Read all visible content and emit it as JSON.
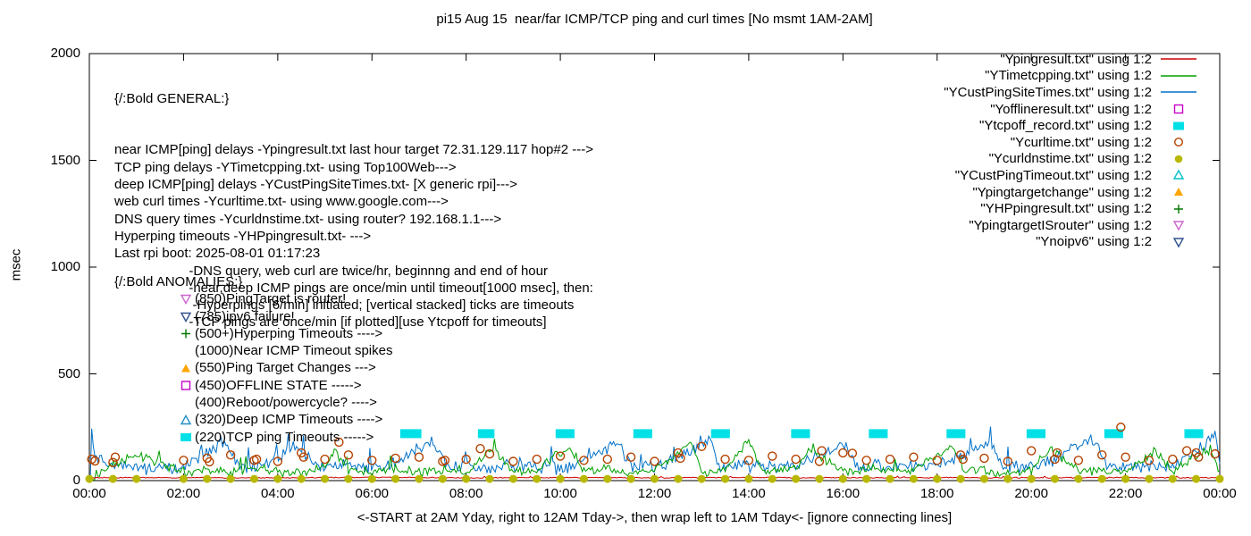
{
  "chart_data": {
    "type": "line",
    "title": "pi15 Aug 15  near/far ICMP/TCP ping and curl times [No msmt 1AM-2AM]",
    "xlabel": "<-START at 2AM Yday, right to 12AM Tday->, then wrap left to 1AM Tday<- [ignore connecting lines]",
    "ylabel": "msec",
    "xlim": [
      0,
      24
    ],
    "ylim": [
      0,
      2000
    ],
    "yticks": [
      0,
      500,
      1000,
      1500,
      2000
    ],
    "xticks": [
      {
        "h": 0,
        "label": "00:00"
      },
      {
        "h": 2,
        "label": "02:00"
      },
      {
        "h": 4,
        "label": "04:00"
      },
      {
        "h": 6,
        "label": "06:00"
      },
      {
        "h": 8,
        "label": "08:00"
      },
      {
        "h": 10,
        "label": "10:00"
      },
      {
        "h": 12,
        "label": "12:00"
      },
      {
        "h": 14,
        "label": "14:00"
      },
      {
        "h": 16,
        "label": "16:00"
      },
      {
        "h": 18,
        "label": "18:00"
      },
      {
        "h": 20,
        "label": "20:00"
      },
      {
        "h": 22,
        "label": "22:00"
      },
      {
        "h": 24,
        "label": "00:00"
      }
    ],
    "legend": [
      {
        "label": "\"Ypingresult.txt\" using 1:2",
        "color": "#d00000",
        "sample": "line",
        "marker": "line"
      },
      {
        "label": "\"YTimetcpping.txt\" using 1:2",
        "color": "#00a000",
        "sample": "line",
        "marker": "line"
      },
      {
        "label": "\"YCustPingSiteTimes.txt\" using 1:2",
        "color": "#0070c8",
        "sample": "line",
        "marker": "line"
      },
      {
        "label": "\"Yofflineresult.txt\" using 1:2",
        "color": "#c800c8",
        "sample": "point",
        "marker": "square-open"
      },
      {
        "label": "\"Ytcpoff_record.txt\" using 1:2",
        "color": "#00e0e6",
        "sample": "point",
        "marker": "square-filled"
      },
      {
        "label": "\"Ycurltime.txt\" using 1:2",
        "color": "#b44200",
        "sample": "point",
        "marker": "circle-open"
      },
      {
        "label": "\"Ycurldnstime.txt\" using 1:2",
        "color": "#b8b800",
        "sample": "point",
        "marker": "circle-filled"
      },
      {
        "label": "\"YCustPingTimeout.txt\" using 1:2",
        "color": "#00c0c8",
        "sample": "point",
        "marker": "triangle-up-open"
      },
      {
        "label": "\"Ypingtargetchange\" using 1:2",
        "color": "#ffa500",
        "sample": "point",
        "marker": "triangle-up-filled"
      },
      {
        "label": "\"YHPpingresult.txt\" using 1:2",
        "color": "#007800",
        "sample": "point",
        "marker": "plus"
      },
      {
        "label": "\"YpingtargetISrouter\" using 1:2",
        "color": "#cc66cc",
        "sample": "point",
        "marker": "triangle-down-open"
      },
      {
        "label": "\"Ynoipv6\" using 1:2",
        "color": "#30508c",
        "sample": "point",
        "marker": "triangle-down-open"
      }
    ],
    "series_lines": [
      {
        "name": "YCustPingSiteTimes",
        "color": "#0070c8",
        "jitter": 38,
        "points": [
          [
            0.02,
            40
          ],
          [
            0.05,
            230
          ],
          [
            0.15,
            90
          ],
          [
            0.5,
            70
          ],
          [
            1.0,
            60
          ],
          [
            2.0,
            65
          ],
          [
            2.9,
            180
          ],
          [
            3.2,
            60
          ],
          [
            3.8,
            75
          ],
          [
            4.4,
            170
          ],
          [
            4.8,
            65
          ],
          [
            5.5,
            70
          ],
          [
            6.2,
            60
          ],
          [
            7.3,
            190
          ],
          [
            7.6,
            70
          ],
          [
            8.2,
            65
          ],
          [
            9.0,
            75
          ],
          [
            9.6,
            60
          ],
          [
            10.4,
            70
          ],
          [
            11.2,
            180
          ],
          [
            11.5,
            65
          ],
          [
            12.2,
            70
          ],
          [
            13.15,
            200
          ],
          [
            13.4,
            65
          ],
          [
            14.2,
            70
          ],
          [
            15.0,
            60
          ],
          [
            16.0,
            170
          ],
          [
            16.3,
            65
          ],
          [
            17.2,
            70
          ],
          [
            18.0,
            60
          ],
          [
            19.1,
            180
          ],
          [
            19.4,
            65
          ],
          [
            20.2,
            70
          ],
          [
            21.3,
            190
          ],
          [
            21.6,
            65
          ],
          [
            22.4,
            70
          ],
          [
            23.0,
            60
          ],
          [
            23.9,
            210
          ],
          [
            24,
            80
          ]
        ]
      },
      {
        "name": "YTimetcpping",
        "color": "#00a000",
        "jitter": 28,
        "points": [
          [
            0,
            10
          ],
          [
            0.4,
            55
          ],
          [
            0.8,
            105
          ],
          [
            1.0,
            120
          ],
          [
            2.0,
            40
          ],
          [
            2.5,
            50
          ],
          [
            3,
            38
          ],
          [
            3.5,
            60
          ],
          [
            4,
            45
          ],
          [
            4.5,
            35
          ],
          [
            5,
            55
          ],
          [
            5.2,
            150
          ],
          [
            5.5,
            45
          ],
          [
            6,
            40
          ],
          [
            6.5,
            60
          ],
          [
            7,
            35
          ],
          [
            7.5,
            50
          ],
          [
            8,
            45
          ],
          [
            8.6,
            150
          ],
          [
            9,
            40
          ],
          [
            9.5,
            55
          ],
          [
            10.2,
            160
          ],
          [
            10.5,
            45
          ],
          [
            11,
            50
          ],
          [
            11.5,
            40
          ],
          [
            12,
            55
          ],
          [
            12.8,
            170
          ],
          [
            13,
            45
          ],
          [
            13.5,
            50
          ],
          [
            14.0,
            190
          ],
          [
            14.3,
            45
          ],
          [
            15,
            55
          ],
          [
            15.3,
            150
          ],
          [
            16,
            40
          ],
          [
            16.5,
            55
          ],
          [
            17,
            45
          ],
          [
            17.5,
            50
          ],
          [
            18.3,
            160
          ],
          [
            18.6,
            45
          ],
          [
            19,
            50
          ],
          [
            19.5,
            40
          ],
          [
            20,
            55
          ],
          [
            20.4,
            150
          ],
          [
            21,
            45
          ],
          [
            21.5,
            50
          ],
          [
            22,
            40
          ],
          [
            22.6,
            140
          ],
          [
            23,
            50
          ],
          [
            23.8,
            150
          ],
          [
            24,
            45
          ]
        ]
      },
      {
        "name": "Ypingresult",
        "color": "#d00000",
        "jitter": 3,
        "points": [
          [
            0,
            13
          ],
          [
            2,
            14
          ],
          [
            4,
            13
          ],
          [
            6,
            15
          ],
          [
            8,
            13
          ],
          [
            10,
            14
          ],
          [
            12,
            13
          ],
          [
            14,
            15
          ],
          [
            16,
            13
          ],
          [
            18,
            14
          ],
          [
            20,
            13
          ],
          [
            22,
            14
          ],
          [
            24,
            13
          ]
        ]
      }
    ],
    "markers": {
      "tcp_timeout_bars": {
        "name": "Ytcpoff_record",
        "color": "#00e0e6",
        "y": 220,
        "ranges": [
          [
            6.6,
            7.05
          ],
          [
            8.25,
            8.6
          ],
          [
            9.9,
            10.3
          ],
          [
            11.55,
            11.95
          ],
          [
            13.2,
            13.6
          ],
          [
            14.9,
            15.3
          ],
          [
            16.55,
            16.95
          ],
          [
            18.2,
            18.6
          ],
          [
            19.9,
            20.3
          ],
          [
            21.55,
            21.95
          ],
          [
            23.25,
            23.65
          ]
        ]
      },
      "curl_circles": {
        "name": "Ycurltime",
        "color": "#b44200",
        "points": [
          [
            0.05,
            100
          ],
          [
            0.12,
            92
          ],
          [
            0.5,
            85
          ],
          [
            0.55,
            110
          ],
          [
            2.0,
            95
          ],
          [
            2.5,
            105
          ],
          [
            2.55,
            88
          ],
          [
            3.0,
            120
          ],
          [
            3.5,
            95
          ],
          [
            3.55,
            100
          ],
          [
            4.0,
            90
          ],
          [
            4.5,
            130
          ],
          [
            4.55,
            110
          ],
          [
            5.0,
            100
          ],
          [
            5.3,
            180
          ],
          [
            5.5,
            120
          ],
          [
            6.0,
            95
          ],
          [
            6.5,
            105
          ],
          [
            7.0,
            110
          ],
          [
            7.5,
            90
          ],
          [
            7.55,
            95
          ],
          [
            8.0,
            100
          ],
          [
            8.3,
            150
          ],
          [
            8.5,
            125
          ],
          [
            9.0,
            90
          ],
          [
            9.5,
            100
          ],
          [
            10.0,
            115
          ],
          [
            10.5,
            95
          ],
          [
            11.0,
            100
          ],
          [
            11.5,
            110
          ],
          [
            12.0,
            90
          ],
          [
            12.5,
            130
          ],
          [
            12.55,
            105
          ],
          [
            13.0,
            160
          ],
          [
            13.5,
            100
          ],
          [
            14.0,
            95
          ],
          [
            14.5,
            115
          ],
          [
            15.0,
            100
          ],
          [
            15.5,
            90
          ],
          [
            15.55,
            140
          ],
          [
            16.0,
            130
          ],
          [
            16.2,
            128
          ],
          [
            16.5,
            95
          ],
          [
            17.0,
            100
          ],
          [
            17.5,
            110
          ],
          [
            18.0,
            95
          ],
          [
            18.5,
            120
          ],
          [
            18.55,
            100
          ],
          [
            19.0,
            105
          ],
          [
            19.5,
            90
          ],
          [
            20.0,
            140
          ],
          [
            20.5,
            100
          ],
          [
            20.55,
            130
          ],
          [
            21.0,
            95
          ],
          [
            21.5,
            120
          ],
          [
            21.9,
            250
          ],
          [
            22.0,
            110
          ],
          [
            22.5,
            95
          ],
          [
            23.0,
            100
          ],
          [
            23.3,
            140
          ],
          [
            23.5,
            130
          ],
          [
            23.55,
            110
          ],
          [
            23.9,
            125
          ]
        ]
      },
      "dns_circles": {
        "name": "Ycurldnstime",
        "color": "#b8b800",
        "y": 8,
        "start": 0,
        "end": 24,
        "step": 0.5,
        "skip": [
          1.5
        ]
      }
    }
  },
  "annotations": {
    "general_heading": "{/:Bold GENERAL:}",
    "general_lines": [
      "near ICMP[ping] delays -Ypingresult.txt last hour target 72.31.129.117 hop#2 --->",
      "TCP ping delays -YTimetcpping.txt- using Top100Web--->",
      "deep ICMP[ping] delays -YCustPingSiteTimes.txt- [X generic rpi]--->",
      "web curl times -Ycurltime.txt- using www.google.com--->",
      "DNS query times -Ycurldnstime.txt- using router? 192.168.1.1--->",
      "Hyperping timeouts -YHPpingresult.txt- --->",
      "Last rpi boot: 2025-08-01 01:17:23",
      "                    -DNS query, web curl are twice/hr, beginnng and end of hour",
      "                    -near,deep ICMP pings are once/min until timeout[1000 msec], then:",
      "                     -Hyperpings [6/min] initiated; [vertical stacked] ticks are timeouts",
      "                    -TCP pings are once/min [if plotted][use Ytcpoff for timeouts]"
    ],
    "anomalies_heading": "{/:Bold ANOMALIES:}",
    "anomalies": [
      {
        "marker": "triangle-down-open",
        "color": "#cc66cc",
        "text": "(850)PingTarget is router!"
      },
      {
        "marker": "triangle-down-open",
        "color": "#30508c",
        "text": "(785)ipv6 failure!"
      },
      {
        "marker": "plus",
        "color": "#007800",
        "text": "(500+)Hyperping Timeouts ---->"
      },
      {
        "marker": null,
        "color": null,
        "text": "(1000)Near ICMP Timeout spikes"
      },
      {
        "marker": "triangle-up-filled",
        "color": "#ffa500",
        "text": "(550)Ping Target Changes --->"
      },
      {
        "marker": "square-open",
        "color": "#c800c8",
        "text": "(450)OFFLINE STATE ----->"
      },
      {
        "marker": null,
        "color": null,
        "text": "(400)Reboot/powercycle? ---->"
      },
      {
        "marker": "triangle-up-open",
        "color": "#2090c8",
        "text": "(320)Deep ICMP Timeouts ---->"
      },
      {
        "marker": "square-filled",
        "color": "#00e0e6",
        "text": "(220)TCP ping Timeouts ----->"
      }
    ]
  }
}
